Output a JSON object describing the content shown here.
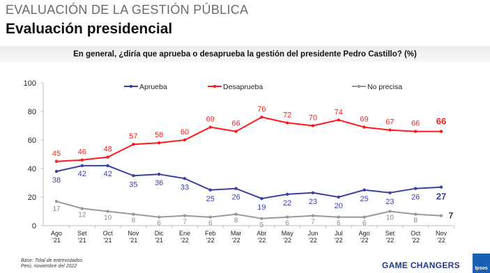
{
  "header": {
    "section_title": "EVALUACIÓN DE LA GESTIÓN PÚBLICA",
    "page_title": "Evaluación presidencial"
  },
  "chart_data": {
    "type": "line",
    "title": "En general, ¿diría que aprueba o desaprueba la gestión del presidente Pedro Castillo? (%)",
    "categories": [
      [
        "Ago",
        "'21"
      ],
      [
        "Set",
        "'21"
      ],
      [
        "Oct",
        "'21"
      ],
      [
        "Nov",
        "'21"
      ],
      [
        "Dic",
        "'21"
      ],
      [
        "Ene",
        "'22"
      ],
      [
        "Feb",
        "'22"
      ],
      [
        "Mar",
        "'22"
      ],
      [
        "Abr",
        "'22"
      ],
      [
        "May",
        "'22"
      ],
      [
        "Jun",
        "'22"
      ],
      [
        "Jul",
        "'22"
      ],
      [
        "Ago",
        "'22"
      ],
      [
        "Set",
        "'22"
      ],
      [
        "Oct",
        "'22"
      ],
      [
        "Nov",
        "'22"
      ]
    ],
    "ylim": [
      0,
      100
    ],
    "yticks": [
      0,
      20,
      40,
      60,
      80,
      100
    ],
    "grid": false,
    "legend_position": "top",
    "series": [
      {
        "name": "Aprueba",
        "color": "#3a3fa8",
        "values": [
          38,
          42,
          42,
          35,
          36,
          33,
          25,
          26,
          19,
          22,
          23,
          20,
          25,
          23,
          26,
          27
        ]
      },
      {
        "name": "Desaprueba",
        "color": "#ff1a1a",
        "values": [
          45,
          46,
          48,
          57,
          58,
          60,
          69,
          66,
          76,
          72,
          70,
          74,
          69,
          67,
          66,
          66
        ]
      },
      {
        "name": "No precisa",
        "color": "#999999",
        "values": [
          17,
          12,
          10,
          8,
          6,
          7,
          6,
          8,
          5,
          6,
          7,
          6,
          6,
          10,
          8,
          7
        ]
      }
    ]
  },
  "footnote": {
    "line1": "Base: Total de entrevistados",
    "line2": "Perú, noviembre del 2022"
  },
  "brand": {
    "tagline": "GAME CHANGERS",
    "logo": "Ipsos"
  }
}
